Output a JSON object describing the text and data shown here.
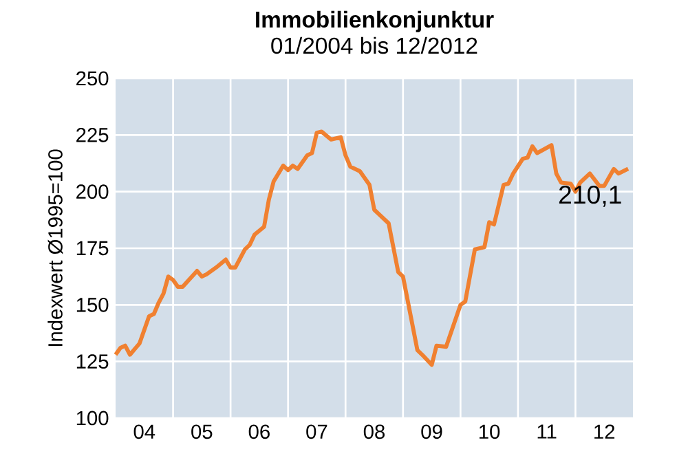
{
  "chart_data": {
    "type": "line",
    "title": "Immobilienkonjunktur",
    "subtitle": "01/2004 bis 12/2012",
    "ylabel": "Indexwert Ø1995=100",
    "x": [
      "2004-01",
      "2004-02",
      "2004-03",
      "2004-04",
      "2004-06",
      "2004-08",
      "2004-09",
      "2004-10",
      "2004-11",
      "2004-12",
      "2005-01",
      "2005-02",
      "2005-03",
      "2005-06",
      "2005-07",
      "2005-08",
      "2005-10",
      "2005-12",
      "2006-01",
      "2006-02",
      "2006-04",
      "2006-05",
      "2006-06",
      "2006-08",
      "2006-09",
      "2006-10",
      "2006-12",
      "2007-01",
      "2007-02",
      "2007-03",
      "2007-05",
      "2007-06",
      "2007-07",
      "2007-08",
      "2007-10",
      "2007-12",
      "2008-01",
      "2008-02",
      "2008-04",
      "2008-06",
      "2008-07",
      "2008-08",
      "2008-10",
      "2008-12",
      "2009-01",
      "2009-04",
      "2009-05",
      "2009-07",
      "2009-08",
      "2009-10",
      "2010-01",
      "2010-02",
      "2010-04",
      "2010-06",
      "2010-07",
      "2010-08",
      "2010-10",
      "2010-11",
      "2010-12",
      "2011-02",
      "2011-03",
      "2011-04",
      "2011-05",
      "2011-08",
      "2011-09",
      "2011-10",
      "2011-12",
      "2012-01",
      "2012-02",
      "2012-04",
      "2012-06",
      "2012-07",
      "2012-09",
      "2012-10",
      "2012-12"
    ],
    "series": [
      {
        "color": "#f08030",
        "values": [
          128,
          131,
          132,
          128,
          133,
          145,
          146,
          151,
          155,
          162.5,
          161,
          158,
          158,
          165,
          162.5,
          163.5,
          166.5,
          170,
          166.5,
          166.5,
          174.5,
          176.5,
          181,
          184.5,
          196.5,
          204.5,
          211.5,
          209.5,
          211.5,
          210,
          216,
          217,
          226,
          226.5,
          223,
          224,
          216,
          211,
          209,
          203,
          192,
          190,
          186,
          164.5,
          162.5,
          130,
          128,
          123.5,
          132,
          131.5,
          150,
          151.5,
          174.5,
          175.5,
          186.5,
          185.5,
          203,
          203.5,
          208,
          214.5,
          215,
          220,
          217,
          220.5,
          208,
          204,
          203.5,
          200,
          204,
          208,
          202.5,
          202.5,
          210,
          208,
          210.1
        ]
      }
    ],
    "xlim": [
      "2004-01",
      "2013-01"
    ],
    "xticks": [
      {
        "value": "2004-07",
        "label": "04"
      },
      {
        "value": "2005-07",
        "label": "05"
      },
      {
        "value": "2006-07",
        "label": "06"
      },
      {
        "value": "2007-07",
        "label": "07"
      },
      {
        "value": "2008-07",
        "label": "08"
      },
      {
        "value": "2009-07",
        "label": "09"
      },
      {
        "value": "2010-07",
        "label": "10"
      },
      {
        "value": "2011-07",
        "label": "11"
      },
      {
        "value": "2012-07",
        "label": "12"
      },
      {
        "value": "2005-01",
        "label": null
      },
      {
        "value": "2006-01",
        "label": null
      },
      {
        "value": "2007-01",
        "label": null
      },
      {
        "value": "2008-01",
        "label": null
      },
      {
        "value": "2009-01",
        "label": null
      },
      {
        "value": "2010-01",
        "label": null
      },
      {
        "value": "2011-01",
        "label": null
      },
      {
        "value": "2012-01",
        "label": null
      }
    ],
    "ylim": [
      100,
      250
    ],
    "yticks": [
      100,
      125,
      150,
      175,
      200,
      225,
      250
    ],
    "grid": true,
    "annotations": [
      {
        "text": "210,1",
        "x": "2012-12",
        "y": 210.1
      }
    ]
  }
}
